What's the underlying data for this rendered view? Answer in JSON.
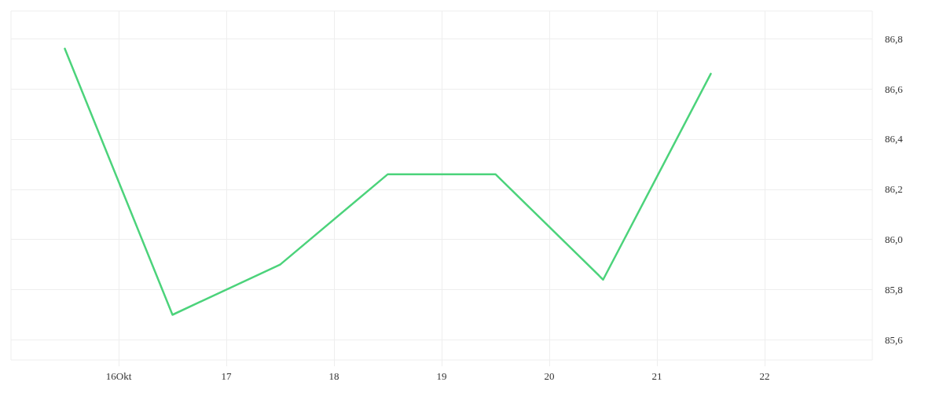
{
  "chart_data": {
    "type": "line",
    "x": [
      "--10-15T12:00",
      "--10-16T12:00",
      "--10-17T12:00",
      "--10-18T12:00",
      "--10-19T12:00",
      "--10-20T12:00",
      "--10-21T12:00"
    ],
    "series": [
      {
        "color": "#4cd37b",
        "values": [
          86.76,
          85.7,
          85.9,
          86.26,
          86.26,
          85.84,
          86.66
        ]
      }
    ],
    "xlim": [
      "--10-15",
      "--10-23"
    ],
    "xticks": [
      {
        "value": "--10-16",
        "label": "16Okt"
      },
      {
        "value": "--10-17",
        "label": "17"
      },
      {
        "value": "--10-18",
        "label": "18"
      },
      {
        "value": "--10-19",
        "label": "19"
      },
      {
        "value": "--10-20",
        "label": "20"
      },
      {
        "value": "--10-21",
        "label": "21"
      },
      {
        "value": "--10-22",
        "label": "22"
      }
    ],
    "ylim": [
      85.52,
      86.91
    ],
    "yticks": [
      {
        "value": 85.6,
        "label": "85,6"
      },
      {
        "value": 85.8,
        "label": "85,8"
      },
      {
        "value": 86.0,
        "label": "86,0"
      },
      {
        "value": 86.2,
        "label": "86,2"
      },
      {
        "value": 86.4,
        "label": "86,4"
      },
      {
        "value": 86.6,
        "label": "86,6"
      },
      {
        "value": 86.8,
        "label": "86,8"
      }
    ],
    "grid": true,
    "marker": "none",
    "line_style": "solid"
  }
}
